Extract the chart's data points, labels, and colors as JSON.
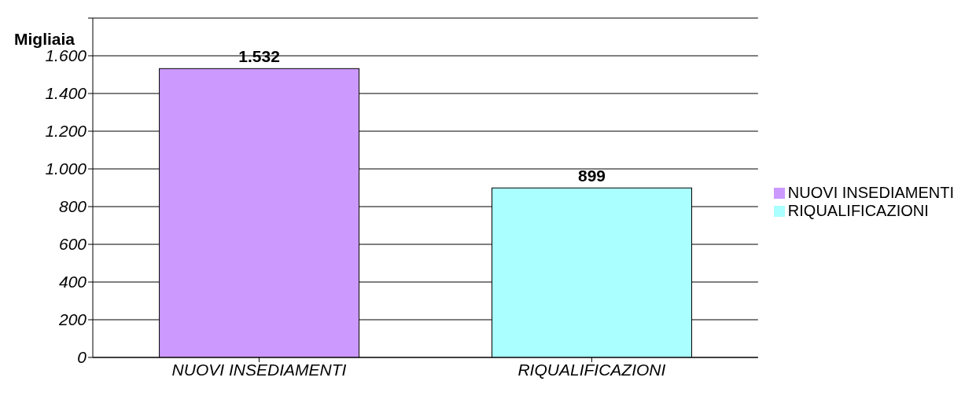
{
  "chart_data": {
    "type": "bar",
    "ylabel": "Migliaia",
    "categories": [
      "NUOVI INSEDIAMENTI",
      "RIQUALIFICAZIONI"
    ],
    "series": [
      {
        "name": "NUOVI INSEDIAMENTI",
        "color": "#cc99ff",
        "values": [
          1532,
          null
        ],
        "value_labels": [
          "1.532",
          null
        ]
      },
      {
        "name": "RIQUALIFICAZIONI",
        "color": "#aaffff",
        "values": [
          null,
          899
        ],
        "value_labels": [
          null,
          "899"
        ]
      }
    ],
    "ylim": [
      0,
      1800
    ],
    "yticks": [
      {
        "value": 0,
        "label": "0"
      },
      {
        "value": 200,
        "label": "200"
      },
      {
        "value": 400,
        "label": "400"
      },
      {
        "value": 600,
        "label": "600"
      },
      {
        "value": 800,
        "label": "800"
      },
      {
        "value": 1000,
        "label": "1.000"
      },
      {
        "value": 1200,
        "label": "1.200"
      },
      {
        "value": 1400,
        "label": "1.400"
      },
      {
        "value": 1600,
        "label": "1.600"
      },
      {
        "value": 1800,
        "label": null
      }
    ],
    "grid": "y",
    "legend": "right"
  }
}
